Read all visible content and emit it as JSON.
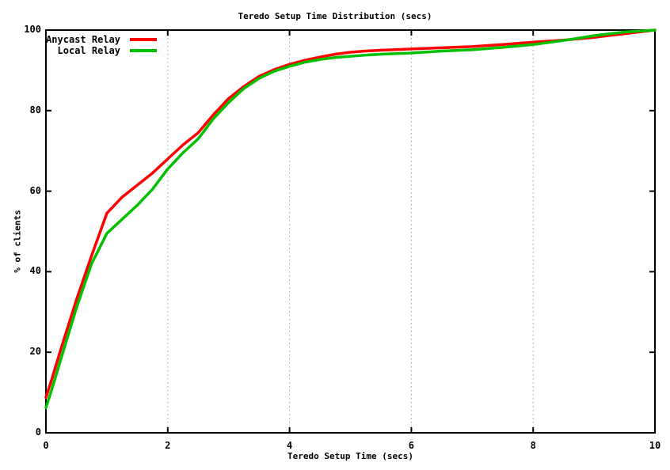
{
  "chart_data": {
    "type": "line",
    "title": "Teredo Setup Time Distribution (secs)",
    "xlabel": "Teredo Setup Time (secs)",
    "ylabel": "% of clients",
    "xlim": [
      0,
      10
    ],
    "ylim": [
      0,
      100
    ],
    "xticks": [
      0,
      2,
      4,
      6,
      8,
      10
    ],
    "yticks": [
      0,
      20,
      40,
      60,
      80,
      100
    ],
    "grid": {
      "vertical": true,
      "horizontal": false,
      "style": "dotted",
      "color": "#a0a0a0"
    },
    "legend": {
      "position": "top-left",
      "entries": [
        "Anycast Relay",
        "Local Relay"
      ]
    },
    "colors": {
      "axis": "#000000",
      "background": "#ffffff",
      "anycast": "#ff0000",
      "local": "#00c000"
    },
    "series": [
      {
        "name": "Anycast Relay",
        "color": "#ff0000",
        "x": [
          0,
          0.1,
          0.25,
          0.5,
          0.75,
          1.0,
          1.25,
          1.5,
          1.75,
          2.0,
          2.25,
          2.5,
          2.75,
          3.0,
          3.25,
          3.5,
          3.75,
          4.0,
          4.25,
          4.5,
          4.75,
          5.0,
          5.25,
          5.5,
          6.0,
          6.5,
          7.0,
          7.5,
          8.0,
          8.5,
          9.0,
          9.5,
          10.0
        ],
        "y": [
          8.8,
          13.5,
          21,
          33,
          44,
          54.5,
          58.5,
          61.5,
          64.5,
          68,
          71.5,
          74.5,
          79,
          83,
          86,
          88.5,
          90.2,
          91.5,
          92.5,
          93.3,
          94,
          94.5,
          94.8,
          95,
          95.3,
          95.6,
          95.9,
          96.4,
          97,
          97.5,
          98.2,
          99.1,
          100
        ]
      },
      {
        "name": "Local Relay",
        "color": "#00c000",
        "x": [
          0,
          0.1,
          0.25,
          0.5,
          0.75,
          1.0,
          1.25,
          1.5,
          1.75,
          2.0,
          2.25,
          2.5,
          2.75,
          3.0,
          3.25,
          3.5,
          3.75,
          4.0,
          4.25,
          4.5,
          4.75,
          5.0,
          5.25,
          5.5,
          6.0,
          6.5,
          7.0,
          7.5,
          8.0,
          8.5,
          9.0,
          9.5,
          10.0
        ],
        "y": [
          6.2,
          11,
          18.5,
          31,
          42,
          49.5,
          53,
          56.5,
          60.5,
          65.5,
          69.5,
          73,
          78,
          82,
          85.5,
          88,
          89.8,
          91,
          92,
          92.7,
          93.2,
          93.5,
          93.8,
          94,
          94.3,
          94.8,
          95.1,
          95.7,
          96.4,
          97.4,
          98.6,
          99.5,
          100
        ]
      }
    ]
  }
}
